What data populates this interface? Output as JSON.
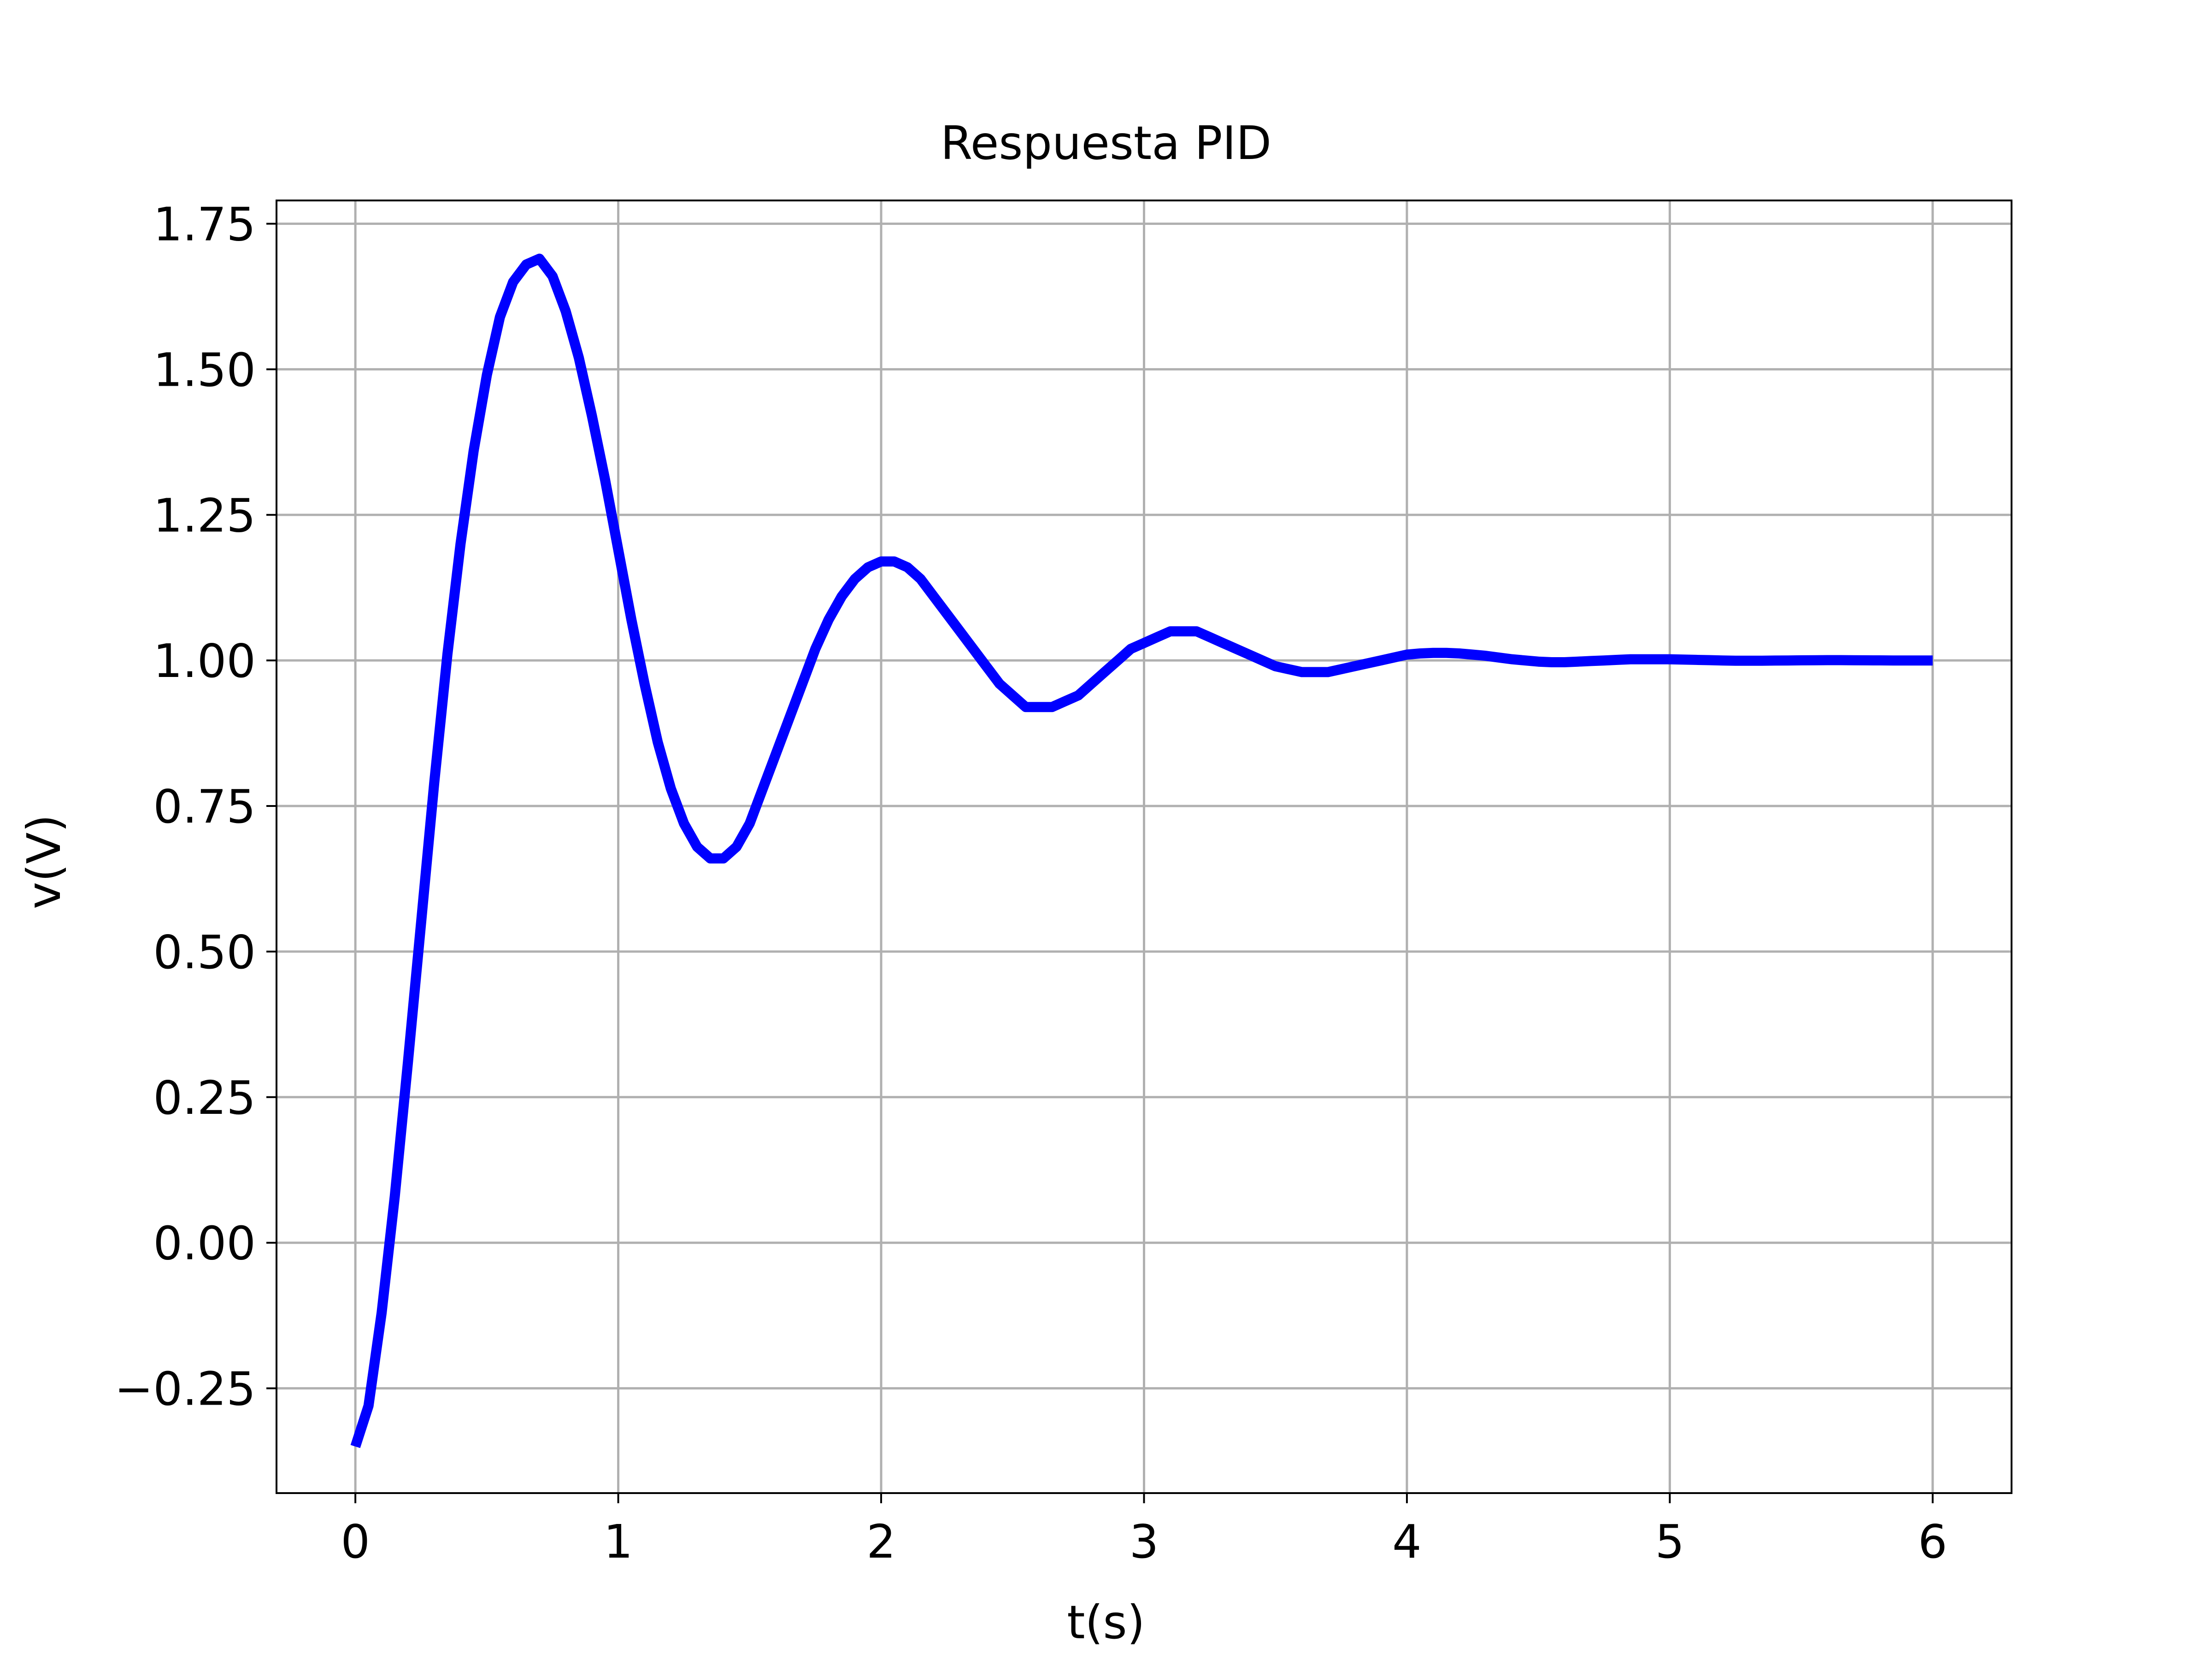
{
  "chart_data": {
    "type": "line",
    "title": "Respuesta PID",
    "xlabel": "t(s)",
    "ylabel": "v(V)",
    "xlim": [
      -0.3,
      6.3
    ],
    "ylim": [
      -0.43,
      1.79
    ],
    "grid": true,
    "legend": "none",
    "x_ticks": [
      0,
      1,
      2,
      3,
      4,
      5,
      6
    ],
    "x_tick_labels": [
      "0",
      "1",
      "2",
      "3",
      "4",
      "5",
      "6"
    ],
    "y_ticks": [
      -0.25,
      0.0,
      0.25,
      0.5,
      0.75,
      1.0,
      1.25,
      1.5,
      1.75
    ],
    "y_tick_labels": [
      "−0.25",
      "0.00",
      "0.25",
      "0.50",
      "0.75",
      "1.00",
      "1.25",
      "1.50",
      "1.75"
    ],
    "series": [
      {
        "color": "#0000ff",
        "x": [
          0,
          0.05,
          0.1,
          0.15,
          0.2,
          0.25,
          0.3,
          0.35,
          0.4,
          0.45,
          0.5,
          0.55,
          0.6,
          0.65,
          0.7,
          0.75,
          0.8,
          0.85,
          0.9,
          0.95,
          1.0,
          1.05,
          1.1,
          1.15,
          1.2,
          1.25,
          1.3,
          1.35,
          1.4,
          1.45,
          1.5,
          1.55,
          1.6,
          1.65,
          1.7,
          1.75,
          1.8,
          1.85,
          1.9,
          1.95,
          2.0,
          2.05,
          2.1,
          2.15,
          2.2,
          2.25,
          2.3,
          2.35,
          2.4,
          2.45,
          2.5,
          2.55,
          2.6,
          2.65,
          2.7,
          2.75,
          2.8,
          2.85,
          2.9,
          2.95,
          3.0,
          3.05,
          3.1,
          3.15,
          3.2,
          3.25,
          3.3,
          3.35,
          3.4,
          3.45,
          3.5,
          3.55,
          3.6,
          3.65,
          3.7,
          3.75,
          3.8,
          3.85,
          3.9,
          3.95,
          4.0,
          4.05,
          4.1,
          4.15,
          4.2,
          4.25,
          4.3,
          4.35,
          4.4,
          4.45,
          4.5,
          4.55,
          4.6,
          4.65,
          4.7,
          4.75,
          4.8,
          4.85,
          4.9,
          4.95,
          5.0,
          5.05,
          5.1,
          5.15,
          5.2,
          5.25,
          5.3,
          5.35,
          5.4,
          5.45,
          5.5,
          5.55,
          5.6,
          5.65,
          5.7,
          5.75,
          5.8,
          5.85,
          5.9,
          5.95,
          6.0
        ],
        "y": [
          -0.35,
          -0.28,
          -0.12,
          0.08,
          0.31,
          0.55,
          0.79,
          1.01,
          1.2,
          1.36,
          1.49,
          1.59,
          1.65,
          1.68,
          1.69,
          1.66,
          1.6,
          1.52,
          1.42,
          1.31,
          1.19,
          1.07,
          0.96,
          0.86,
          0.78,
          0.72,
          0.68,
          0.66,
          0.66,
          0.68,
          0.72,
          0.78,
          0.84,
          0.9,
          0.96,
          1.02,
          1.07,
          1.11,
          1.14,
          1.16,
          1.17,
          1.17,
          1.16,
          1.14,
          1.11,
          1.08,
          1.05,
          1.02,
          0.99,
          0.96,
          0.94,
          0.92,
          0.92,
          0.92,
          0.93,
          0.94,
          0.96,
          0.98,
          1.0,
          1.02,
          1.03,
          1.04,
          1.05,
          1.05,
          1.05,
          1.04,
          1.03,
          1.02,
          1.01,
          1.0,
          0.99,
          0.985,
          0.98,
          0.98,
          0.98,
          0.985,
          0.99,
          0.995,
          1.0,
          1.005,
          1.01,
          1.012,
          1.013,
          1.013,
          1.012,
          1.01,
          1.008,
          1.005,
          1.002,
          1.0,
          0.998,
          0.997,
          0.997,
          0.998,
          0.999,
          1.0,
          1.001,
          1.002,
          1.002,
          1.002,
          1.002,
          1.0015,
          1.001,
          1.0005,
          1.0,
          0.9995,
          0.9995,
          0.9995,
          0.9998,
          1.0,
          1.0002,
          1.0004,
          1.0005,
          1.0005,
          1.0004,
          1.0002,
          1.0001,
          1.0,
          1.0,
          1.0,
          1.0
        ]
      }
    ]
  }
}
